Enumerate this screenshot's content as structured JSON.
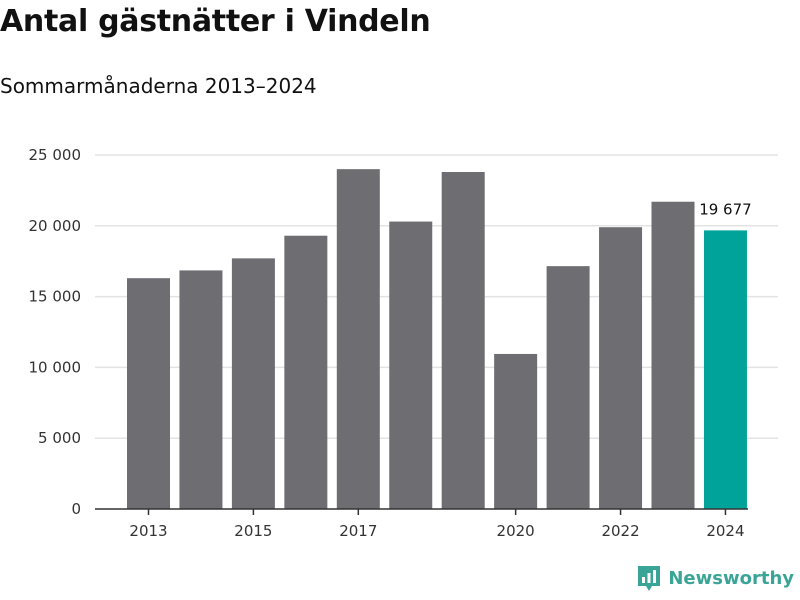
{
  "chart_data": {
    "type": "bar",
    "title": "Antal gästnätter i Vindeln",
    "subtitle": "Sommarmånaderna 2013–2024",
    "categories": [
      2013,
      2014,
      2015,
      2016,
      2017,
      2018,
      2019,
      2020,
      2021,
      2022,
      2023,
      2024
    ],
    "values": [
      16300,
      16850,
      17700,
      19300,
      24000,
      20300,
      23800,
      10950,
      17150,
      19900,
      21700,
      19677
    ],
    "x_tick_labels": [
      "2013",
      "2015",
      "2017",
      "2020",
      "2022",
      "2024"
    ],
    "y_ticks": [
      0,
      5000,
      10000,
      15000,
      20000,
      25000
    ],
    "y_tick_labels": [
      "0",
      "5 000",
      "10 000",
      "15 000",
      "20 000",
      "25 000"
    ],
    "ylim": [
      0,
      25000
    ],
    "grid": true,
    "highlight_index": 11,
    "highlight_label": "19 677",
    "colors": {
      "bar": "#6d6d72",
      "highlight": "#00a39a",
      "grid": "#e3e3e3",
      "axis": "#333333"
    }
  },
  "brand": {
    "name": "Newsworthy",
    "color": "#3aa596"
  }
}
